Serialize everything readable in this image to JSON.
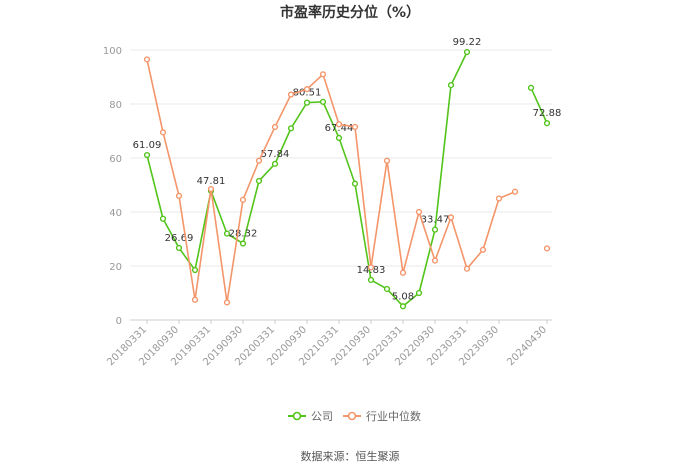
{
  "chart_data": {
    "type": "line",
    "title": "市盈率历史分位（%）",
    "xlabel": "",
    "ylabel": "",
    "ylim": [
      0,
      100
    ],
    "yticks": [
      0,
      20,
      40,
      60,
      80,
      100
    ],
    "x": [
      "20180331",
      "20180630",
      "20180930",
      "20181231",
      "20190331",
      "20190630",
      "20190930",
      "20191231",
      "20200331",
      "20200630",
      "20200930",
      "20201231",
      "20210331",
      "20210630",
      "20210930",
      "20211231",
      "20220331",
      "20220630",
      "20220930",
      "20221231",
      "20230331",
      "20230630",
      "20230930",
      "20231231",
      "20240331",
      "20240430"
    ],
    "xtick_labels": [
      "20180331",
      "20180930",
      "20190331",
      "20190930",
      "20200331",
      "20200930",
      "20210331",
      "20210930",
      "20220331",
      "20220930",
      "20230331",
      "20230930",
      "20240430"
    ],
    "series": [
      {
        "name": "公司",
        "color": "#52c41a",
        "values": [
          61.09,
          37.5,
          26.69,
          18.5,
          47.81,
          32.0,
          28.32,
          51.5,
          57.84,
          71.0,
          80.51,
          80.8,
          67.44,
          50.5,
          14.83,
          11.5,
          5.08,
          10.0,
          33.47,
          87.0,
          99.22,
          null,
          null,
          null,
          86.0,
          72.88
        ],
        "labels": [
          {
            "index": 0,
            "text": "61.09"
          },
          {
            "index": 2,
            "text": "26.69"
          },
          {
            "index": 4,
            "text": "47.81"
          },
          {
            "index": 6,
            "text": "28.32"
          },
          {
            "index": 8,
            "text": "57.84"
          },
          {
            "index": 10,
            "text": "80.51"
          },
          {
            "index": 12,
            "text": "67.44"
          },
          {
            "index": 14,
            "text": "14.83"
          },
          {
            "index": 16,
            "text": "5.08"
          },
          {
            "index": 18,
            "text": "33.47"
          },
          {
            "index": 20,
            "text": "99.22"
          },
          {
            "index": 25,
            "text": "72.88"
          }
        ]
      },
      {
        "name": "行业中位数",
        "color": "#f4956a",
        "values": [
          96.5,
          69.5,
          46.0,
          7.5,
          48.5,
          6.5,
          44.5,
          59.0,
          71.5,
          83.5,
          85.5,
          91.0,
          72.5,
          71.5,
          19.5,
          59.0,
          17.5,
          40.0,
          22.0,
          38.0,
          19.0,
          26.0,
          45.0,
          47.5,
          null,
          26.5
        ],
        "labels": []
      }
    ],
    "legend": "bottom",
    "grid": true
  },
  "source_label": "数据来源：恒生聚源"
}
